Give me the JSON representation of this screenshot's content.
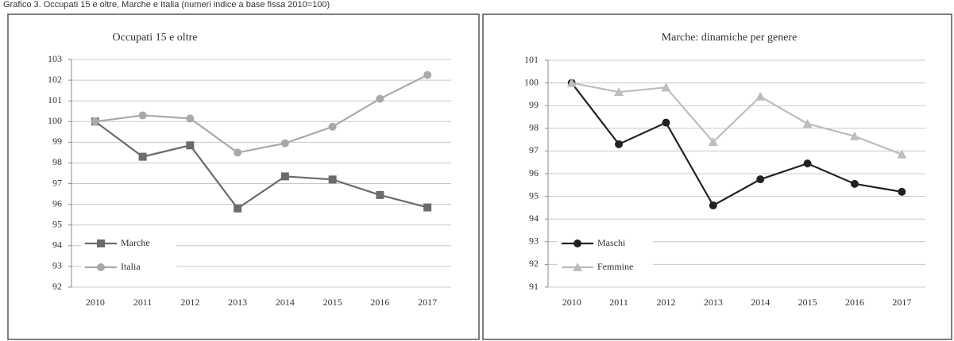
{
  "caption": "Grafico 3. Occupati 15 e oltre, Marche e Italia (numeri indice a base fissa 2010=100)",
  "chart_data": [
    {
      "type": "line",
      "title": "Occupati  15 e oltre",
      "categories": [
        "2010",
        "2011",
        "2012",
        "2013",
        "2014",
        "2015",
        "2016",
        "2017"
      ],
      "series": [
        {
          "name": "Marche",
          "color": "#6b6b6b",
          "marker": "square",
          "values": [
            100,
            98.3,
            98.85,
            95.8,
            97.35,
            97.2,
            96.45,
            95.85
          ]
        },
        {
          "name": "Italia",
          "color": "#a9a9a9",
          "marker": "circle",
          "values": [
            100,
            100.3,
            100.15,
            98.5,
            98.95,
            99.75,
            101.1,
            102.25
          ]
        }
      ],
      "ylim": [
        92,
        103
      ],
      "yticks": [
        92,
        93,
        94,
        95,
        96,
        97,
        98,
        99,
        100,
        101,
        102,
        103
      ],
      "grid": true,
      "legend": "lower left"
    },
    {
      "type": "line",
      "title": "Marche: dinamiche per genere",
      "categories": [
        "2010",
        "2011",
        "2012",
        "2013",
        "2014",
        "2015",
        "2016",
        "2017"
      ],
      "series": [
        {
          "name": "Maschi",
          "color": "#222222",
          "marker": "circle",
          "values": [
            100,
            97.3,
            98.25,
            94.6,
            95.75,
            96.45,
            95.55,
            95.2
          ]
        },
        {
          "name": "Femmine",
          "color": "#bdbdbd",
          "marker": "triangle",
          "values": [
            100,
            99.6,
            99.8,
            97.4,
            99.4,
            98.2,
            97.65,
            96.85
          ]
        }
      ],
      "ylim": [
        91,
        101
      ],
      "yticks": [
        91,
        92,
        93,
        94,
        95,
        96,
        97,
        98,
        99,
        100,
        101
      ],
      "grid": true,
      "legend": "lower left"
    }
  ]
}
